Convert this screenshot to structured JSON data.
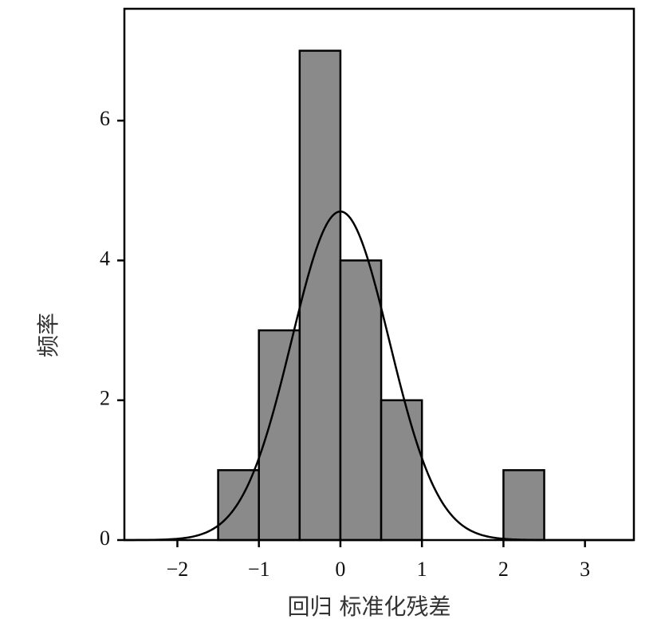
{
  "chart_data": {
    "type": "bar",
    "subtype": "histogram with fitted normal curve",
    "xlabel": "回归 标准化残差",
    "ylabel": "频率",
    "xlim": [
      -2.65,
      3.6
    ],
    "ylim": [
      0,
      7.6
    ],
    "xticks": [
      -2,
      -1,
      0,
      1,
      2,
      3
    ],
    "xtick_labels": [
      "−2",
      "−1",
      "0",
      "1",
      "2",
      "3"
    ],
    "yticks": [
      0,
      2,
      4,
      6
    ],
    "ytick_labels": [
      "0",
      "2",
      "4",
      "6"
    ],
    "grid": false,
    "legend": "none",
    "bins": [
      {
        "x0": -1.5,
        "x1": -1.0,
        "count": 1
      },
      {
        "x0": -1.0,
        "x1": -0.5,
        "count": 3
      },
      {
        "x0": -0.5,
        "x1": 0.0,
        "count": 7
      },
      {
        "x0": 0.0,
        "x1": 0.5,
        "count": 4
      },
      {
        "x0": 0.5,
        "x1": 1.0,
        "count": 2
      },
      {
        "x0": 2.0,
        "x1": 2.5,
        "count": 1
      }
    ],
    "normal_curve": {
      "mean": 0.0,
      "std": 0.6,
      "peak": 4.7
    },
    "bar_color": "#8a8a8a",
    "bar_edge_color": "#000000",
    "curve_color": "#000000"
  }
}
